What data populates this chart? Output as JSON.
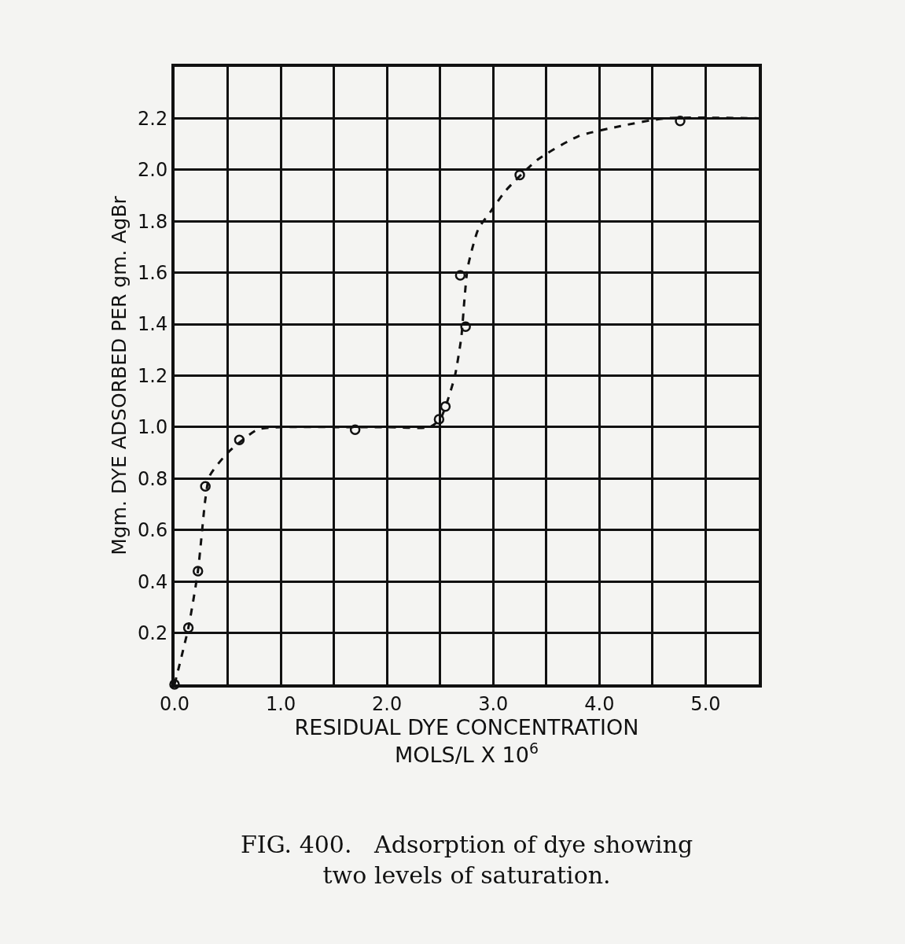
{
  "chart_data": {
    "type": "scatter",
    "xlabel": "RESIDUAL DYE CONCENTRATION\nMOLS/L X 10$^{6}$",
    "ylabel": "Mgm. DYE ADSORBED PER gm. AgBr",
    "annotations": [
      "FIG. 400.   Adsorption of dye showing\ntwo levels of saturation."
    ],
    "series": [
      {
        "color": "#111111",
        "marker": "circle",
        "x": [
          0.0,
          0.13,
          0.22,
          0.29,
          0.61,
          1.7,
          2.49,
          2.55,
          2.69,
          2.74,
          3.25,
          4.76
        ],
        "values": [
          0.0,
          0.22,
          0.44,
          0.77,
          0.95,
          0.99,
          1.03,
          1.08,
          1.59,
          1.39,
          1.98,
          2.19
        ]
      },
      {
        "type": "line",
        "color": "#111111",
        "line_style": "dashed",
        "x": [
          0.0,
          0.13,
          0.22,
          0.29,
          0.33,
          0.5,
          0.78,
          1.0,
          1.5,
          2.0,
          2.4,
          2.5,
          2.56,
          2.64,
          2.7,
          2.73,
          2.76,
          2.86,
          2.98,
          3.12,
          3.42,
          3.8,
          4.2,
          4.62,
          5.5
        ],
        "values": [
          0.0,
          0.22,
          0.44,
          0.72,
          0.81,
          0.9,
          0.99,
          1.0,
          1.0,
          1.0,
          1.0,
          1.03,
          1.09,
          1.2,
          1.35,
          1.5,
          1.62,
          1.77,
          1.84,
          1.92,
          2.04,
          2.13,
          2.17,
          2.2,
          2.2
        ]
      }
    ],
    "xlim": [
      0,
      5.5
    ],
    "xticks": [
      {
        "value": 0,
        "label": "0.0"
      },
      {
        "value": 0.5,
        "label": null
      },
      {
        "value": 1,
        "label": "1.0"
      },
      {
        "value": 1.5,
        "label": null
      },
      {
        "value": 2,
        "label": "2.0"
      },
      {
        "value": 2.5,
        "label": null
      },
      {
        "value": 3,
        "label": "3.0"
      },
      {
        "value": 3.5,
        "label": null
      },
      {
        "value": 4,
        "label": "4.0"
      },
      {
        "value": 4.5,
        "label": null
      },
      {
        "value": 5,
        "label": "5.0"
      }
    ],
    "ylim": [
      0,
      2.4
    ],
    "yticks": [
      0.2,
      0.4,
      0.6,
      0.8,
      {
        "value": 1.0,
        "label": "1.0"
      },
      1.2,
      1.4,
      1.6,
      1.8,
      {
        "value": 2.0,
        "label": "2.0"
      },
      2.2
    ],
    "grid": true
  }
}
